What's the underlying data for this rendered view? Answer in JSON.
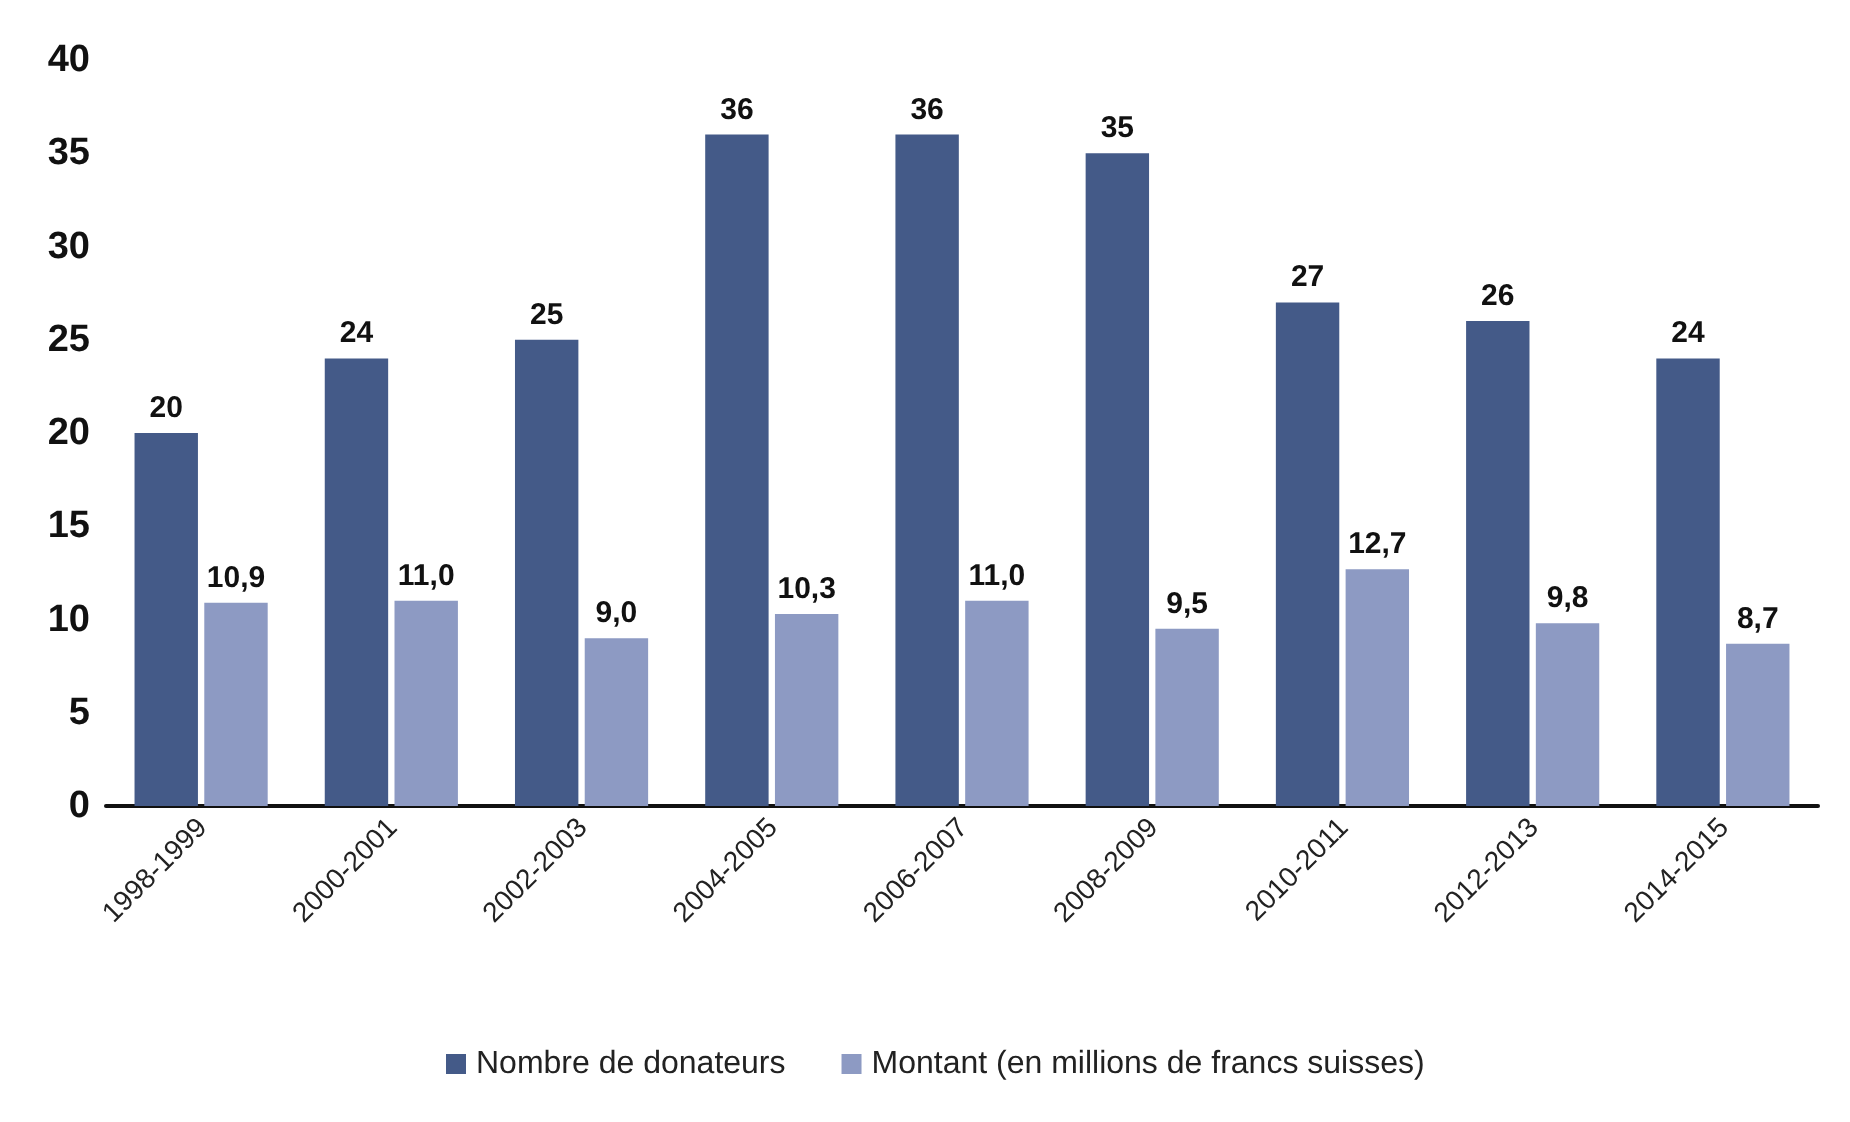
{
  "chart_data": {
    "type": "bar",
    "categories": [
      "1998-1999",
      "2000-2001",
      "2002-2003",
      "2004-2005",
      "2006-2007",
      "2008-2009",
      "2010-2011",
      "2012-2013",
      "2014-2015"
    ],
    "series": [
      {
        "name": "Nombre de donateurs",
        "color": "#445a88",
        "values": [
          20,
          24,
          25,
          36,
          36,
          35,
          27,
          26,
          24
        ],
        "value_labels": [
          "20",
          "24",
          "25",
          "36",
          "36",
          "35",
          "27",
          "26",
          "24"
        ]
      },
      {
        "name": "Montant (en millions de francs suisses)",
        "color": "#8d9ac3",
        "values": [
          10.9,
          11.0,
          9.0,
          10.3,
          11.0,
          9.5,
          12.7,
          9.8,
          8.7
        ],
        "value_labels": [
          "10,9",
          "11,0",
          "9,0",
          "10,3",
          "11,0",
          "9,5",
          "12,7",
          "9,8",
          "8,7"
        ]
      }
    ],
    "ylim": [
      0,
      40
    ],
    "yticks": [
      0,
      5,
      10,
      15,
      20,
      25,
      30,
      35,
      40
    ],
    "grid": false,
    "legend": "bottom"
  }
}
